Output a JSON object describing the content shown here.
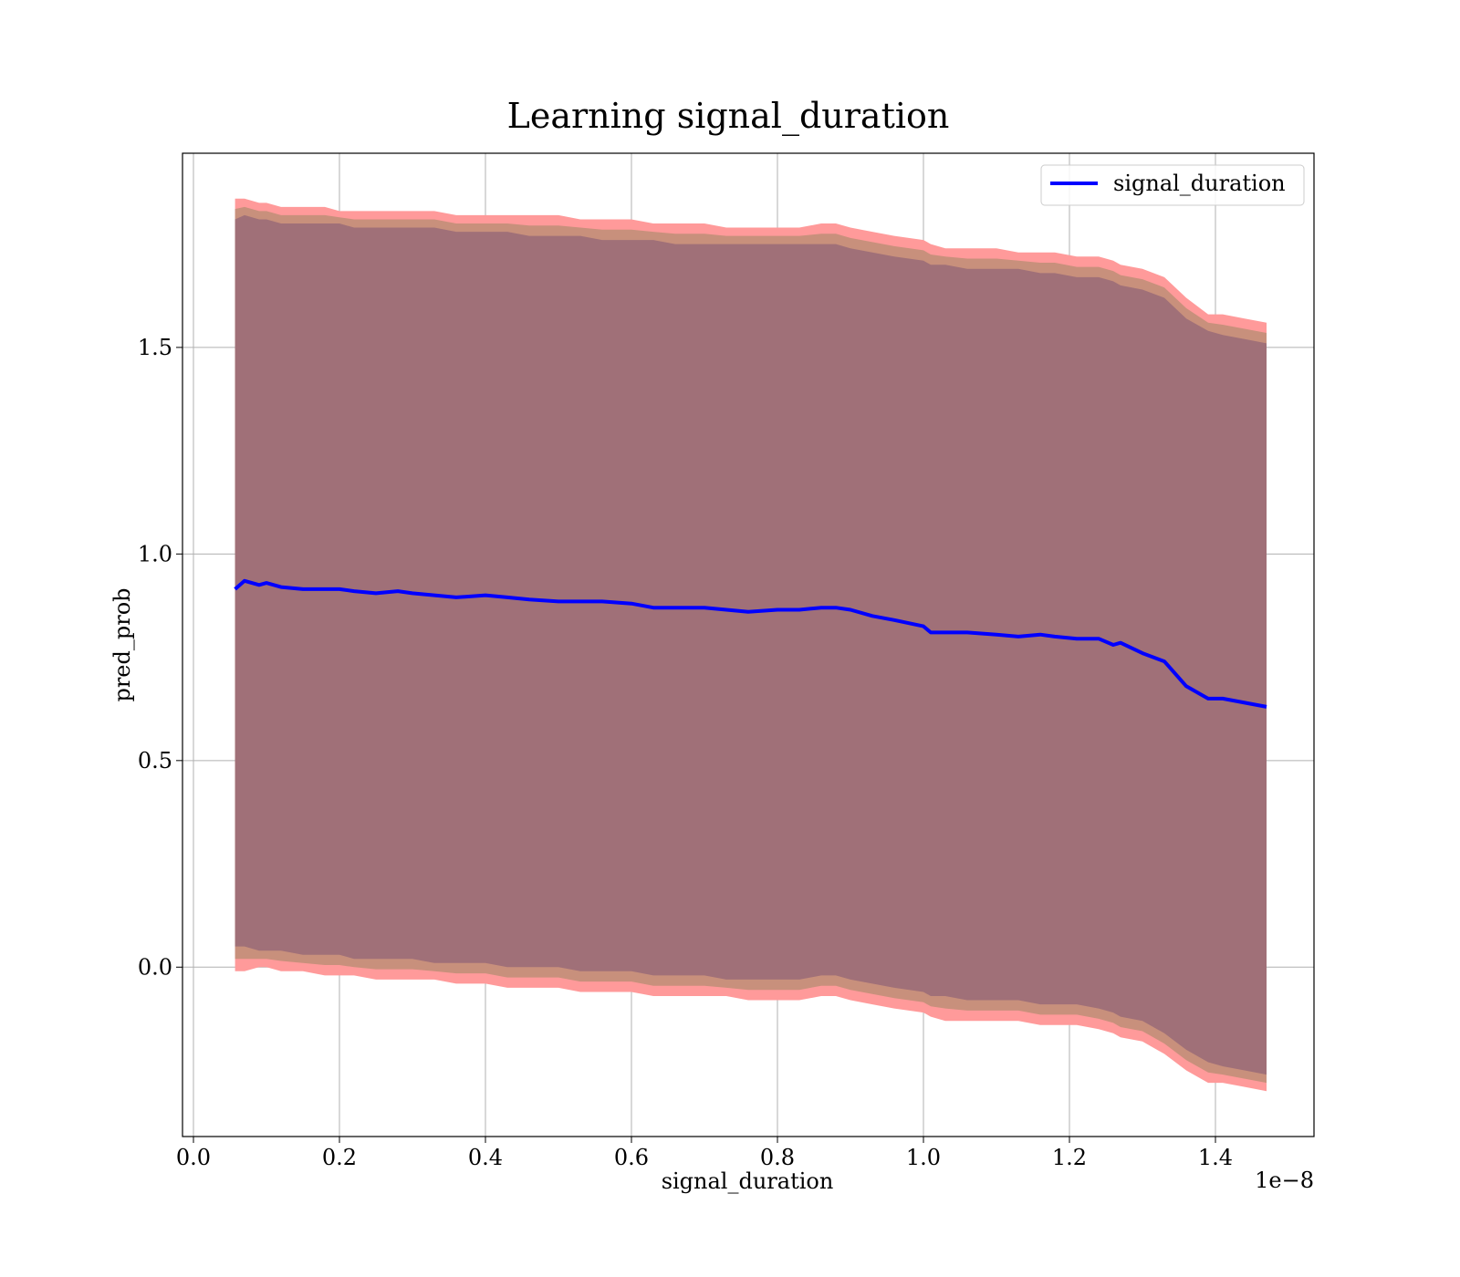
{
  "chart_data": {
    "type": "line",
    "title": "Learning signal_duration",
    "xlabel": "signal_duration",
    "ylabel": "pred_prob",
    "x_offset_label": "1e−8",
    "xlim": [
      -0.015,
      1.535
    ],
    "ylim": [
      -0.41,
      1.97
    ],
    "xticks": [
      0.0,
      0.2,
      0.4,
      0.6,
      0.8,
      1.0,
      1.2,
      1.4
    ],
    "xtick_labels": [
      "0.0",
      "0.2",
      "0.4",
      "0.6",
      "0.8",
      "1.0",
      "1.2",
      "1.4"
    ],
    "yticks": [
      0.0,
      0.5,
      1.0,
      1.5
    ],
    "ytick_labels": [
      "0.0",
      "0.5",
      "1.0",
      "1.5"
    ],
    "grid": true,
    "legend": {
      "position": "top-right",
      "entries": [
        "signal_duration"
      ]
    },
    "series": [
      {
        "name": "signal_duration",
        "color": "#0000ff",
        "x": [
          0.057,
          0.07,
          0.09,
          0.1,
          0.12,
          0.15,
          0.18,
          0.2,
          0.22,
          0.25,
          0.28,
          0.3,
          0.33,
          0.36,
          0.4,
          0.43,
          0.46,
          0.5,
          0.53,
          0.56,
          0.6,
          0.63,
          0.66,
          0.7,
          0.73,
          0.76,
          0.8,
          0.83,
          0.86,
          0.88,
          0.9,
          0.93,
          0.96,
          1.0,
          1.01,
          1.03,
          1.06,
          1.1,
          1.13,
          1.16,
          1.18,
          1.21,
          1.24,
          1.26,
          1.27,
          1.3,
          1.33,
          1.36,
          1.39,
          1.41,
          1.44,
          1.47
        ],
        "y": [
          0.915,
          0.935,
          0.925,
          0.93,
          0.92,
          0.915,
          0.915,
          0.915,
          0.91,
          0.905,
          0.91,
          0.905,
          0.9,
          0.895,
          0.9,
          0.895,
          0.89,
          0.885,
          0.885,
          0.885,
          0.88,
          0.87,
          0.87,
          0.87,
          0.865,
          0.86,
          0.865,
          0.865,
          0.87,
          0.87,
          0.865,
          0.85,
          0.84,
          0.825,
          0.81,
          0.81,
          0.81,
          0.805,
          0.8,
          0.805,
          0.8,
          0.795,
          0.795,
          0.78,
          0.785,
          0.76,
          0.74,
          0.68,
          0.65,
          0.65,
          0.64,
          0.63
        ],
        "band_outer_upper": [
          1.86,
          1.86,
          1.85,
          1.85,
          1.84,
          1.84,
          1.84,
          1.83,
          1.83,
          1.83,
          1.83,
          1.83,
          1.83,
          1.82,
          1.82,
          1.82,
          1.82,
          1.82,
          1.81,
          1.81,
          1.81,
          1.8,
          1.8,
          1.8,
          1.79,
          1.79,
          1.79,
          1.79,
          1.8,
          1.8,
          1.79,
          1.78,
          1.77,
          1.76,
          1.75,
          1.74,
          1.74,
          1.74,
          1.73,
          1.73,
          1.73,
          1.72,
          1.72,
          1.71,
          1.7,
          1.69,
          1.67,
          1.62,
          1.58,
          1.58,
          1.57,
          1.56
        ],
        "band_outer_lower": [
          -0.01,
          -0.01,
          0.0,
          0.0,
          -0.01,
          -0.01,
          -0.02,
          -0.02,
          -0.02,
          -0.03,
          -0.03,
          -0.03,
          -0.03,
          -0.04,
          -0.04,
          -0.05,
          -0.05,
          -0.05,
          -0.06,
          -0.06,
          -0.06,
          -0.07,
          -0.07,
          -0.07,
          -0.07,
          -0.08,
          -0.08,
          -0.08,
          -0.07,
          -0.07,
          -0.08,
          -0.09,
          -0.1,
          -0.11,
          -0.12,
          -0.13,
          -0.13,
          -0.13,
          -0.13,
          -0.14,
          -0.14,
          -0.14,
          -0.15,
          -0.16,
          -0.17,
          -0.18,
          -0.21,
          -0.25,
          -0.28,
          -0.28,
          -0.29,
          -0.3
        ],
        "band_inner_upper": [
          1.81,
          1.82,
          1.81,
          1.81,
          1.8,
          1.8,
          1.8,
          1.8,
          1.79,
          1.79,
          1.79,
          1.79,
          1.79,
          1.78,
          1.78,
          1.78,
          1.77,
          1.77,
          1.77,
          1.76,
          1.76,
          1.76,
          1.75,
          1.75,
          1.75,
          1.75,
          1.75,
          1.75,
          1.75,
          1.75,
          1.74,
          1.73,
          1.72,
          1.71,
          1.7,
          1.7,
          1.69,
          1.69,
          1.69,
          1.68,
          1.68,
          1.67,
          1.67,
          1.66,
          1.65,
          1.64,
          1.62,
          1.57,
          1.54,
          1.53,
          1.52,
          1.51
        ],
        "band_inner_lower": [
          0.05,
          0.05,
          0.04,
          0.04,
          0.04,
          0.03,
          0.03,
          0.03,
          0.02,
          0.02,
          0.02,
          0.02,
          0.01,
          0.01,
          0.01,
          0.0,
          0.0,
          0.0,
          -0.01,
          -0.01,
          -0.01,
          -0.02,
          -0.02,
          -0.02,
          -0.03,
          -0.03,
          -0.03,
          -0.03,
          -0.02,
          -0.02,
          -0.03,
          -0.04,
          -0.05,
          -0.06,
          -0.07,
          -0.07,
          -0.08,
          -0.08,
          -0.08,
          -0.09,
          -0.09,
          -0.09,
          -0.1,
          -0.11,
          -0.12,
          -0.13,
          -0.16,
          -0.2,
          -0.23,
          -0.24,
          -0.25,
          -0.26
        ]
      }
    ],
    "colors": {
      "line": "#0000ff",
      "band_outer": "#ff9a9a",
      "band_middle": "#c8907c",
      "band_inner": "#a07078",
      "grid": "#b0b0b0",
      "axes": "#000000"
    }
  }
}
